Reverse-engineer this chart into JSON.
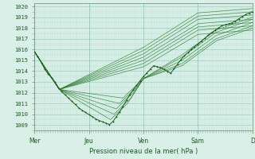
{
  "title": "Pression niveau de la mer( hPa )",
  "bg_color": "#d8f0e8",
  "grid_color_minor": "#b8ddd0",
  "grid_color_major": "#90c8b8",
  "line_color_dark": "#1a5c1a",
  "line_color_medium": "#2e7d2e",
  "ylim": [
    1008.5,
    1020.3
  ],
  "yticks": [
    1009,
    1010,
    1011,
    1012,
    1013,
    1014,
    1015,
    1016,
    1017,
    1018,
    1019,
    1020
  ],
  "xtick_labels": [
    "Mer",
    "Jeu",
    "Ven",
    "Sam",
    "D"
  ],
  "xtick_positions": [
    0,
    48,
    96,
    144,
    192
  ],
  "total_points": 193,
  "figsize": [
    3.2,
    2.0
  ],
  "dpi": 100
}
